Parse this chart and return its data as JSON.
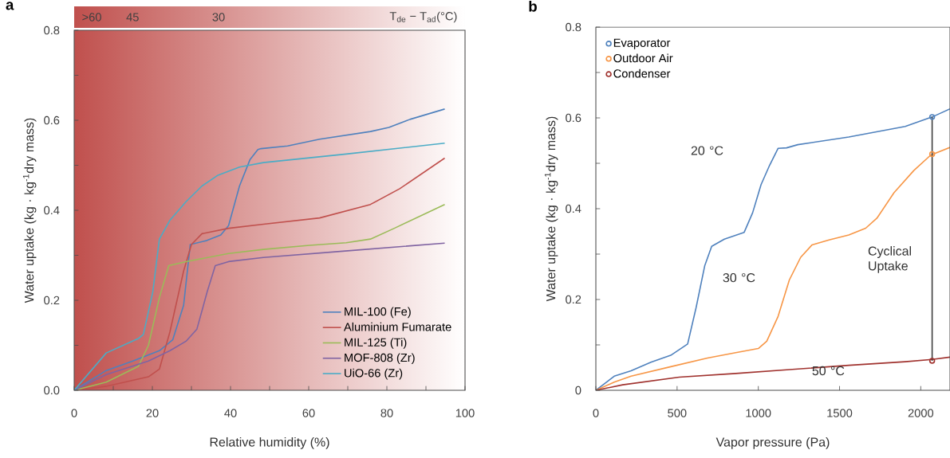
{
  "chart_data": [
    {
      "type": "line",
      "title": "a",
      "xlabel": "Relative humidity (%)",
      "ylabel": "Water uptake  (kg · kg$^{-1}$dry mass)",
      "x2label": "T$_{de}$ − T$_{ad}$(°C)",
      "xlim": [
        0,
        100
      ],
      "xticks": [
        0,
        {
          "value": 10,
          "label": null
        },
        20,
        {
          "value": 30,
          "label": null
        },
        40,
        {
          "value": 50,
          "label": null
        },
        60,
        {
          "value": 70,
          "label": null
        },
        80,
        {
          "value": 90,
          "label": null
        },
        100
      ],
      "ylim": [
        0,
        0.8
      ],
      "yticks": [
        {
          "value": 0,
          "label": "0.0"
        },
        {
          "value": 0.1,
          "label": null
        },
        0.2,
        {
          "value": 0.3,
          "label": null
        },
        0.4,
        {
          "value": 0.5,
          "label": null
        },
        0.6,
        {
          "value": 0.7,
          "label": null
        },
        0.8
      ],
      "x2lim": [
        55.2,
        -13
      ],
      "x2ticks": [
        45,
        30
      ],
      "annotations": [
        ">60"
      ],
      "bands": [
        {
          "axis": "x",
          "from": 0,
          "to": 100,
          "color": "#c0504d"
        }
      ],
      "legend": "bottom right",
      "series": [
        {
          "name": "MIL-100 (Fe)",
          "color": "#4f81bd",
          "x": [
            0,
            8.2,
            15,
            21.8,
            25.2,
            28,
            29.7,
            34,
            37.5,
            39.5,
            42.3,
            45,
            47,
            47.8,
            54.6,
            62.8,
            75.8,
            80.5,
            85.9,
            94.8
          ],
          "values": [
            0,
            0.044,
            0.065,
            0.088,
            0.112,
            0.189,
            0.324,
            0.333,
            0.345,
            0.366,
            0.454,
            0.513,
            0.535,
            0.537,
            0.543,
            0.558,
            0.575,
            0.584,
            0.602,
            0.625
          ]
        },
        {
          "name": "Aluminium Fumarate",
          "color": "#c0504d",
          "x": [
            0,
            8.2,
            19,
            21.8,
            24.5,
            28,
            30,
            32.7,
            39.5,
            48.4,
            62.8,
            75.8,
            83.3,
            94.8
          ],
          "values": [
            0,
            0.009,
            0.03,
            0.047,
            0.13,
            0.265,
            0.324,
            0.348,
            0.36,
            0.369,
            0.383,
            0.413,
            0.448,
            0.516
          ]
        },
        {
          "name": "MIL-125 (Ti)",
          "color": "#9bbb59",
          "x": [
            0,
            8.2,
            16.4,
            19,
            21.8,
            24.2,
            28.6,
            39.5,
            48.4,
            60.2,
            69.6,
            75.8,
            81.9,
            94.8
          ],
          "values": [
            0,
            0.018,
            0.053,
            0.1,
            0.206,
            0.277,
            0.286,
            0.304,
            0.313,
            0.322,
            0.328,
            0.336,
            0.36,
            0.413
          ]
        },
        {
          "name": "MOF-808 (Zr)",
          "color": "#8064a2",
          "x": [
            0,
            8.2,
            19,
            24.5,
            28.6,
            31.4,
            34,
            36.1,
            39.5,
            48.4,
            70,
            94.8
          ],
          "values": [
            0,
            0.035,
            0.065,
            0.088,
            0.109,
            0.136,
            0.218,
            0.277,
            0.286,
            0.295,
            0.31,
            0.327
          ]
        },
        {
          "name": "UiO-66 (Zr)",
          "color": "#4bacc6",
          "x": [
            0,
            8.2,
            16.4,
            17.7,
            20.1,
            21.8,
            24.5,
            28.6,
            32.7,
            36.8,
            42.3,
            48.4,
            69.6,
            94.8
          ],
          "values": [
            0,
            0.083,
            0.115,
            0.124,
            0.218,
            0.336,
            0.378,
            0.419,
            0.454,
            0.478,
            0.496,
            0.506,
            0.525,
            0.549
          ]
        }
      ]
    },
    {
      "type": "line",
      "title": "b",
      "xlabel": "Vapor pressure (Pa)",
      "ylabel": "Water uptake  (kg · kg$^{-1}$dry mass)",
      "xlim": [
        0,
        2180
      ],
      "xticks": [
        0,
        500,
        1000,
        1500,
        2000
      ],
      "ylim": [
        0,
        0.8
      ],
      "yticks": [
        0,
        {
          "value": 0.1,
          "label": null
        },
        0.2,
        {
          "value": 0.3,
          "label": null
        },
        0.4,
        {
          "value": 0.5,
          "label": null
        },
        0.6,
        {
          "value": 0.7,
          "label": null
        },
        0.8
      ],
      "legend": "top left",
      "annotations": [
        "20 °C",
        "30 °C",
        {
          "text": "50 °C",
          "x": 1487,
          "y": 0.043
        },
        "Cyclical Uptake"
      ],
      "series": [
        {
          "color": "#4f81bd",
          "x": [
            0,
            113,
            217,
            339,
            461,
            565,
            617,
            670,
            713,
            791,
            913,
            965,
            1017,
            1070,
            1122,
            1174,
            1243,
            1557,
            1904,
            2070,
            2180
          ],
          "values": [
            0,
            0.031,
            0.043,
            0.062,
            0.077,
            0.102,
            0.182,
            0.274,
            0.317,
            0.333,
            0.348,
            0.391,
            0.453,
            0.496,
            0.533,
            0.534,
            0.541,
            0.558,
            0.581,
            0.602,
            0.62
          ]
        },
        {
          "color": "#f79646",
          "x": [
            0,
            113,
            217,
            461,
            687,
            861,
            1000,
            1052,
            1122,
            1191,
            1261,
            1330,
            1435,
            1557,
            1661,
            1730,
            1835,
            1957,
            2061,
            2180
          ],
          "values": [
            0,
            0.018,
            0.031,
            0.052,
            0.071,
            0.083,
            0.092,
            0.108,
            0.163,
            0.243,
            0.293,
            0.32,
            0.331,
            0.342,
            0.357,
            0.379,
            0.435,
            0.484,
            0.518,
            0.535
          ]
        },
        {
          "color": "#a0322e",
          "x": [
            0,
            165,
            513,
            861,
            1209,
            1557,
            1904,
            2070,
            2180
          ],
          "values": [
            0,
            0.012,
            0.029,
            0.037,
            0.046,
            0.055,
            0.063,
            0.068,
            0.073
          ]
        },
        {
          "color": "#404040",
          "x": [
            2070,
            2070
          ],
          "values": [
            0.065,
            0.602
          ]
        },
        {
          "type": "scatter",
          "marker": "circle",
          "name": "Evaporator",
          "color": "#4f81bd",
          "x": [
            2070
          ],
          "values": [
            0.602
          ]
        },
        {
          "type": "scatter",
          "marker": "circle",
          "name": "Outdoor Air",
          "color": "#f79646",
          "x": [
            2070
          ],
          "values": [
            0.52
          ]
        },
        {
          "type": "scatter",
          "marker": "circle",
          "name": "Condenser",
          "color": "#a0322e",
          "x": [
            2070
          ],
          "values": [
            0.065
          ]
        }
      ]
    }
  ]
}
